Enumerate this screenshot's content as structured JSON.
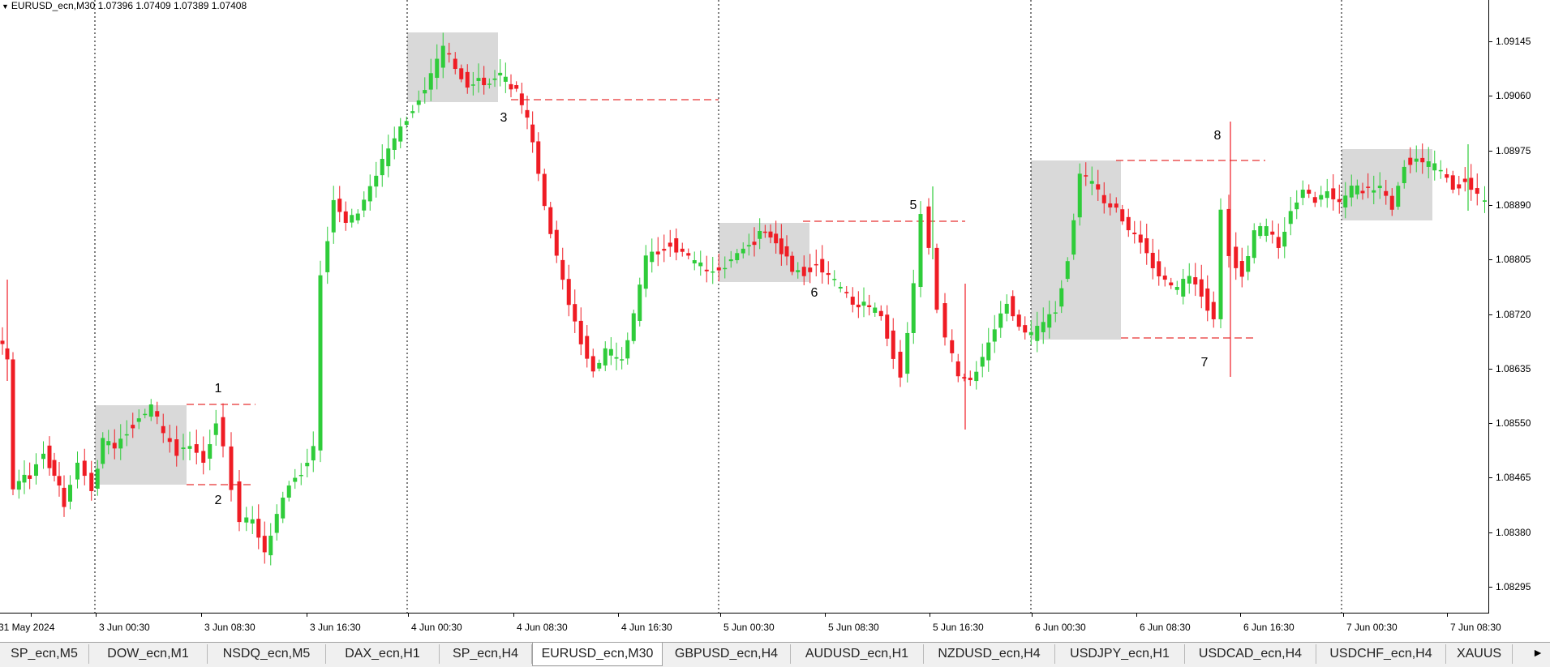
{
  "chart": {
    "header_text": "EURUSD_ecn,M30  1.07396 1.07409 1.07389 1.07408",
    "colors": {
      "bull": "#2fcc3a",
      "bear": "#ef1c24",
      "zone": "#d9d9d9",
      "level": "#e83030",
      "grid": "#000000"
    },
    "price_labels": [
      "1.09145",
      "1.09060",
      "1.08975",
      "1.08890",
      "1.08805",
      "1.08720",
      "1.08635",
      "1.08550",
      "1.08465",
      "1.08380",
      "1.08295"
    ],
    "time_labels": [
      "31 May 2024",
      "3 Jun 00:30",
      "3 Jun 08:30",
      "3 Jun 16:30",
      "4 Jun 00:30",
      "4 Jun 08:30",
      "4 Jun 16:30",
      "5 Jun 00:30",
      "5 Jun 08:30",
      "5 Jun 16:30",
      "6 Jun 00:30",
      "6 Jun 08:30",
      "6 Jun 16:30",
      "7 Jun 00:30",
      "7 Jun 08:30"
    ],
    "annotations": [
      "1",
      "2",
      "3",
      "5",
      "6",
      "7",
      "8"
    ]
  },
  "tabs": [
    "SP_ecn,M5",
    "DOW_ecn,M1",
    "NSDQ_ecn,M5",
    "DAX_ecn,H1",
    "SP_ecn,H4",
    "EURUSD_ecn,M30",
    "GBPUSD_ecn,H4",
    "AUDUSD_ecn,H1",
    "NZDUSD_ecn,H4",
    "USDJPY_ecn,H1",
    "USDCAD_ecn,H4",
    "USDCHF_ecn,H4",
    "XAUUS"
  ],
  "active_tab": "EURUSD_ecn,M30",
  "scroll_arrow": "►"
}
